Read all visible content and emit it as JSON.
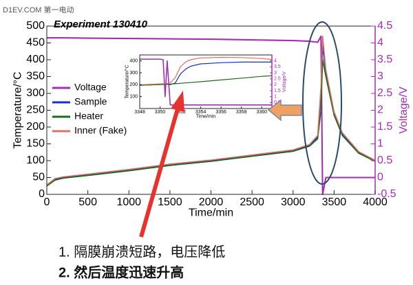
{
  "chart_data": [
    {
      "type": "line",
      "title": "Experiment 130410",
      "x_label": "Time/min",
      "y_label": "Temperature/°C",
      "y2_label": "Voltage/V",
      "x": [
        0,
        100,
        200,
        500,
        1000,
        1500,
        2000,
        2500,
        3000,
        3200,
        3300,
        3340,
        3360,
        3400,
        3500,
        3600,
        3800,
        4000
      ],
      "xlim": [
        0,
        4000
      ],
      "xticks": [
        0,
        500,
        1000,
        1500,
        2000,
        2500,
        3000,
        3500,
        4000
      ],
      "ylim": [
        0,
        500
      ],
      "yticks": [
        0,
        50,
        100,
        150,
        200,
        250,
        300,
        350,
        400,
        450,
        500
      ],
      "y2lim": [
        -0.5,
        4.5
      ],
      "y2ticks": [
        -0.5,
        0,
        0.5,
        1,
        1.5,
        2,
        2.5,
        3,
        3.5,
        4,
        4.5
      ],
      "y2color": "#a62bb5",
      "legend": "upper left",
      "series": [
        {
          "name": "Voltage",
          "color": "#a62bb5",
          "axis": "y2",
          "values": [
            4.15,
            4.15,
            4.15,
            4.14,
            4.13,
            4.12,
            4.11,
            4.09,
            4.07,
            4.05,
            4.02,
            4.2,
            -0.5,
            0,
            0,
            0,
            0,
            0
          ]
        },
        {
          "name": "Sample",
          "color": "#1a2fd0",
          "values": [
            25,
            45,
            50,
            58,
            72,
            88,
            100,
            115,
            130,
            145,
            170,
            300,
            440,
            360,
            240,
            180,
            125,
            100
          ]
        },
        {
          "name": "Heater",
          "color": "#1a6b1a",
          "values": [
            25,
            42,
            48,
            56,
            70,
            86,
            98,
            113,
            128,
            143,
            165,
            250,
            400,
            350,
            235,
            175,
            122,
            98
          ]
        },
        {
          "name": "Inner (Fake)",
          "color": "#e07060",
          "values": [
            28,
            47,
            52,
            60,
            74,
            90,
            102,
            117,
            132,
            148,
            175,
            320,
            470,
            370,
            245,
            183,
            127,
            101
          ]
        }
      ]
    },
    {
      "type": "line",
      "x_label": "Time/min",
      "y_label": "Temperature/°C",
      "y2_label": "Voltage/V",
      "x": [
        3348,
        3349,
        3350,
        3350.3,
        3350.5,
        3350.7,
        3351,
        3351.5,
        3352,
        3352.5,
        3353,
        3354,
        3356,
        3358,
        3360,
        3361
      ],
      "xlim": [
        3348,
        3361
      ],
      "xticks": [
        3348,
        3350,
        3352,
        3354,
        3356,
        3358,
        3360
      ],
      "ylim": [
        0,
        450
      ],
      "yticks": [
        100,
        200,
        300,
        400
      ],
      "y2lim": [
        0,
        4.5
      ],
      "y2ticks": [
        0.5,
        1,
        1.5,
        2,
        2.5,
        3,
        3.5,
        4
      ],
      "y2color": "#a62bb5",
      "series": [
        {
          "color": "#a62bb5",
          "axis": "y2",
          "values": [
            4.15,
            4.15,
            4.15,
            4.1,
            1.0,
            4.0,
            0.3,
            0.3,
            0.3,
            0.3,
            0.3,
            0.3,
            0.3,
            0.3,
            0.3,
            0.3
          ]
        },
        {
          "color": "#1a2fd0",
          "values": [
            195,
            198,
            202,
            204,
            205,
            205,
            200,
            215,
            290,
            330,
            355,
            375,
            385,
            390,
            390,
            390
          ]
        },
        {
          "color": "#1a6b1a",
          "values": [
            195,
            198,
            201,
            202,
            203,
            203,
            205,
            208,
            212,
            215,
            218,
            225,
            240,
            255,
            270,
            275
          ]
        },
        {
          "color": "#e07060",
          "values": [
            200,
            203,
            207,
            208,
            210,
            210,
            215,
            260,
            350,
            390,
            410,
            425,
            430,
            428,
            420,
            412
          ]
        }
      ]
    }
  ],
  "annotations": {
    "watermark": "D1EV.COM 第一电动",
    "notes": [
      "1.  隔膜崩溃短路，电压降低",
      "2.  然后温度迅速升高"
    ]
  }
}
